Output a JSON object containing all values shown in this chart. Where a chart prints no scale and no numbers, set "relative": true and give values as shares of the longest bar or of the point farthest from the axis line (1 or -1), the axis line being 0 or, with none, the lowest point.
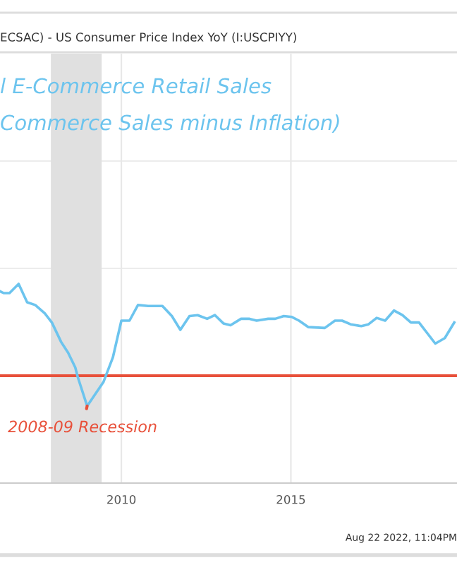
{
  "chart_data": {
    "type": "line",
    "title": "l E-Commerce Retail Sales",
    "subtitle": "Commerce Sales minus Inflation)",
    "annotations": [
      "ECSAC) - US Consumer Price Index YoY (I:USCPIYY)",
      {
        "text": "2008-09 Recession",
        "x": 2008.99,
        "y": -0.33
      },
      "Aug 22 2022, 11:04PM"
    ],
    "relative": true,
    "x": [
      2006.42,
      2006.53,
      2006.7,
      2006.97,
      2007.22,
      2007.46,
      2007.74,
      2007.95,
      2008.22,
      2008.43,
      2008.64,
      2008.71,
      2008.99,
      2009.47,
      2009.75,
      2010.0,
      2010.24,
      2010.49,
      2010.79,
      2011.21,
      2011.49,
      2011.74,
      2012.01,
      2012.25,
      2012.53,
      2012.76,
      2013.01,
      2013.22,
      2013.53,
      2013.78,
      2013.99,
      2014.33,
      2014.54,
      2014.79,
      2015.03,
      2015.24,
      2015.51,
      2016.0,
      2016.3,
      2016.51,
      2016.76,
      2017.08,
      2017.29,
      2017.53,
      2017.78,
      2018.04,
      2018.29,
      2018.54,
      2018.78,
      2019.26,
      2019.54,
      2019.82
    ],
    "series": [
      {
        "color": "#6cc4ee",
        "values": [
          0.92,
          0.9,
          0.9,
          1.0,
          0.8,
          0.77,
          0.68,
          0.58,
          0.37,
          0.25,
          0.09,
          -0.01,
          -0.33,
          -0.07,
          0.2,
          0.6,
          0.6,
          0.77,
          0.76,
          0.76,
          0.65,
          0.5,
          0.65,
          0.66,
          0.62,
          0.66,
          0.57,
          0.55,
          0.62,
          0.62,
          0.6,
          0.62,
          0.62,
          0.65,
          0.64,
          0.6,
          0.53,
          0.52,
          0.6,
          0.6,
          0.56,
          0.54,
          0.56,
          0.63,
          0.6,
          0.71,
          0.66,
          0.58,
          0.58,
          0.35,
          0.41,
          0.58
        ]
      }
    ],
    "xlim": [
      2006.42,
      2019.9
    ],
    "xticks": [
      2010,
      2015
    ],
    "ref_lines": [
      {
        "axis": "y",
        "value": 0,
        "color": "#e8503a"
      }
    ],
    "bands": [
      {
        "axis": "x",
        "from": 2007.92,
        "to": 2009.42,
        "color": "#e0e0e0"
      }
    ],
    "grid": true,
    "marker": "none",
    "line_style": "solid",
    "legend": false
  }
}
